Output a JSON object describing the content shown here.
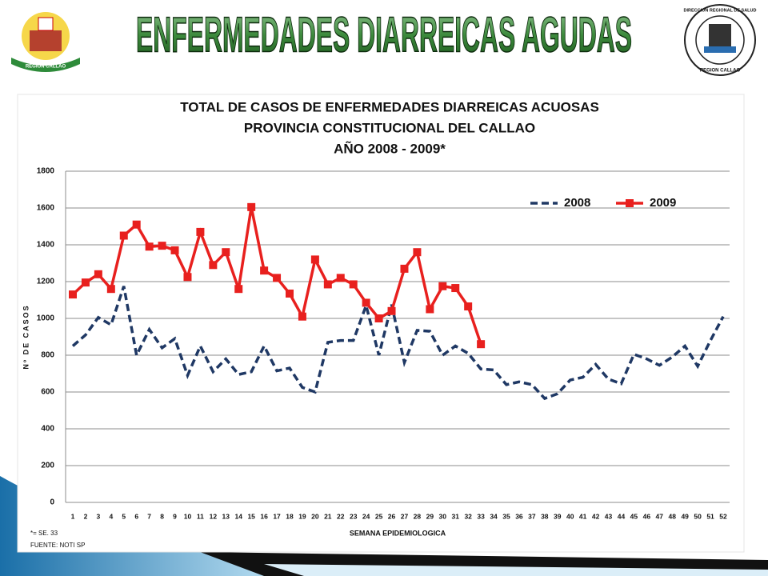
{
  "header": {
    "title": "ENFERMEDADES DIARREICAS AGUDAS",
    "left_logo_text": "REGION CALLAO",
    "right_logo_text": [
      "DIRECCION REGIONAL DE SALUD",
      "REGION CALLAO"
    ]
  },
  "chart_data": {
    "type": "line",
    "title": [
      "TOTAL DE CASOS DE ENFERMEDADES  DIARREICAS ACUOSAS",
      "PROVINCIA  CONSTITUCIONAL  DEL  CALLAO",
      "AÑO 2008 - 2009*"
    ],
    "x_label": "SEMANA  EPIDEMIOLOGICA",
    "y_label": "Nº DE CASOS",
    "categories": [
      1,
      2,
      3,
      4,
      5,
      6,
      7,
      8,
      9,
      10,
      11,
      12,
      13,
      14,
      15,
      16,
      17,
      18,
      19,
      20,
      21,
      22,
      23,
      24,
      25,
      26,
      27,
      28,
      29,
      30,
      31,
      32,
      33,
      34,
      35,
      36,
      37,
      38,
      39,
      40,
      41,
      42,
      43,
      44,
      45,
      46,
      47,
      48,
      49,
      50,
      51,
      52
    ],
    "series": [
      {
        "name": "2008",
        "color": "#1f3864",
        "line_style": "dashed",
        "marker": "none",
        "values": [
          850,
          910,
          1005,
          965,
          1175,
          800,
          940,
          840,
          890,
          690,
          850,
          710,
          780,
          695,
          710,
          850,
          715,
          730,
          625,
          600,
          870,
          880,
          880,
          1070,
          800,
          1075,
          760,
          935,
          930,
          800,
          850,
          810,
          725,
          720,
          640,
          655,
          640,
          565,
          590,
          665,
          680,
          750,
          670,
          645,
          805,
          780,
          745,
          790,
          850,
          740,
          880,
          1010
        ]
      },
      {
        "name": "2009",
        "color": "#e8201e",
        "line_style": "solid",
        "marker": "square",
        "values": [
          1130,
          1195,
          1240,
          1160,
          1450,
          1510,
          1390,
          1395,
          1370,
          1225,
          1470,
          1290,
          1360,
          1160,
          1605,
          1260,
          1220,
          1135,
          1010,
          1320,
          1185,
          1220,
          1185,
          1085,
          1000,
          1040,
          1270,
          1360,
          1050,
          1175,
          1165,
          1065,
          860,
          null,
          null,
          null,
          null,
          null,
          null,
          null,
          null,
          null,
          null,
          null,
          null,
          null,
          null,
          null,
          null,
          null,
          null,
          null
        ]
      }
    ],
    "ylim": [
      0,
      1800
    ],
    "yticks": [
      0,
      200,
      400,
      600,
      800,
      1000,
      1200,
      1400,
      1600,
      1800
    ],
    "grid": true,
    "legend": "top-right",
    "notes": [
      "*= SE. 33",
      "FUENTE: NOTI SP"
    ]
  }
}
